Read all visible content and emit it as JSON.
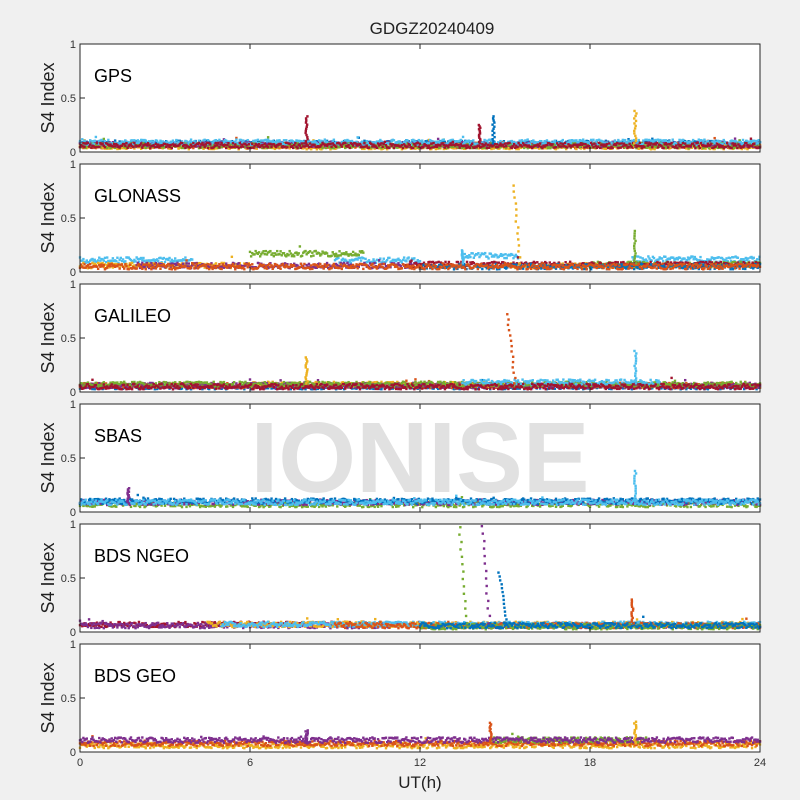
{
  "chart_data": {
    "type": "scatter",
    "title": "GDGZ20240409",
    "xlabel": "UT(h)",
    "ylabel": "S4 Index",
    "xlim": [
      0,
      24
    ],
    "ylim": [
      0,
      1
    ],
    "xticks": [
      "0",
      "6",
      "12",
      "18",
      "24"
    ],
    "yticks": [
      "0",
      "0.5",
      "1"
    ],
    "watermark": "IONISE",
    "colors": [
      "#0072BD",
      "#D95319",
      "#EDB120",
      "#7E2F8E",
      "#77AC30",
      "#4DBEEE",
      "#A2142F"
    ],
    "panels": [
      {
        "label": "GPS",
        "series": [
          {
            "color": 0,
            "segments": [
              [
                0,
                24,
                0.08
              ]
            ]
          },
          {
            "color": 1,
            "segments": [
              [
                0,
                24,
                0.06
              ]
            ]
          },
          {
            "color": 2,
            "segments": [
              [
                0,
                24,
                0.05
              ]
            ]
          },
          {
            "color": 3,
            "segments": [
              [
                0,
                24,
                0.07
              ]
            ]
          },
          {
            "color": 4,
            "segments": [
              [
                0,
                24,
                0.06
              ]
            ]
          },
          {
            "color": 5,
            "segments": [
              [
                0,
                24,
                0.09
              ]
            ]
          },
          {
            "color": 6,
            "segments": [
              [
                0,
                24,
                0.06
              ]
            ]
          }
        ],
        "spikes": [
          {
            "t": 8.0,
            "color": 6,
            "max": 0.33
          },
          {
            "t": 14.1,
            "color": 6,
            "max": 0.25
          },
          {
            "t": 14.6,
            "color": 0,
            "max": 0.33
          },
          {
            "t": 19.6,
            "color": 2,
            "max": 0.38
          }
        ]
      },
      {
        "label": "GLONASS",
        "series": [
          {
            "color": 5,
            "segments": [
              [
                0,
                4,
                0.11
              ],
              [
                9,
                12,
                0.11
              ],
              [
                13.5,
                15.5,
                0.15
              ],
              [
                19.5,
                24,
                0.12
              ]
            ]
          },
          {
            "color": 2,
            "segments": [
              [
                0,
                6,
                0.06
              ],
              [
                15,
                20,
                0.06
              ]
            ]
          },
          {
            "color": 3,
            "segments": [
              [
                2,
                12,
                0.06
              ]
            ]
          },
          {
            "color": 4,
            "segments": [
              [
                6,
                10,
                0.17
              ],
              [
                18,
                24,
                0.07
              ]
            ]
          },
          {
            "color": 6,
            "segments": [
              [
                11.5,
                24,
                0.07
              ]
            ]
          },
          {
            "color": 0,
            "segments": [
              [
                12,
                24,
                0.05
              ]
            ]
          },
          {
            "color": 1,
            "segments": [
              [
                0,
                24,
                0.05
              ]
            ]
          }
        ],
        "spikes": [
          {
            "t": 13.5,
            "color": 5,
            "max": 0.2
          },
          {
            "t": 15.3,
            "color": 2,
            "max": 0.8
          },
          {
            "t": 19.6,
            "color": 4,
            "max": 0.38
          }
        ]
      },
      {
        "label": "GALILEO",
        "series": [
          {
            "color": 0,
            "segments": [
              [
                0,
                24,
                0.05
              ]
            ]
          },
          {
            "color": 1,
            "segments": [
              [
                0,
                24,
                0.06
              ]
            ]
          },
          {
            "color": 2,
            "segments": [
              [
                6,
                15,
                0.07
              ]
            ]
          },
          {
            "color": 3,
            "segments": [
              [
                0,
                24,
                0.06
              ]
            ]
          },
          {
            "color": 4,
            "segments": [
              [
                0,
                24,
                0.07
              ]
            ]
          },
          {
            "color": 5,
            "segments": [
              [
                13.5,
                20.5,
                0.09
              ]
            ]
          },
          {
            "color": 6,
            "segments": [
              [
                0,
                24,
                0.05
              ]
            ]
          }
        ],
        "spikes": [
          {
            "t": 8.0,
            "color": 2,
            "max": 0.32
          },
          {
            "t": 15.1,
            "color": 1,
            "max": 0.72
          },
          {
            "t": 19.6,
            "color": 5,
            "max": 0.38
          }
        ]
      },
      {
        "label": "SBAS",
        "series": [
          {
            "color": 4,
            "segments": [
              [
                0,
                24,
                0.07
              ]
            ]
          },
          {
            "color": 3,
            "segments": [
              [
                0,
                24,
                0.09
              ]
            ]
          },
          {
            "color": 0,
            "segments": [
              [
                0,
                24,
                0.1
              ]
            ]
          },
          {
            "color": 5,
            "segments": [
              [
                0,
                24,
                0.09
              ]
            ]
          }
        ],
        "spikes": [
          {
            "t": 1.7,
            "color": 3,
            "max": 0.22
          },
          {
            "t": 19.6,
            "color": 5,
            "max": 0.38
          }
        ]
      },
      {
        "label": "BDS NGEO",
        "series": [
          {
            "color": 6,
            "segments": [
              [
                0,
                10,
                0.07
              ]
            ]
          },
          {
            "color": 3,
            "segments": [
              [
                0,
                24,
                0.06
              ]
            ]
          },
          {
            "color": 2,
            "segments": [
              [
                4.5,
                24,
                0.07
              ]
            ]
          },
          {
            "color": 5,
            "segments": [
              [
                5,
                24,
                0.07
              ]
            ]
          },
          {
            "color": 1,
            "segments": [
              [
                9,
                24,
                0.06
              ]
            ]
          },
          {
            "color": 4,
            "segments": [
              [
                12,
                24,
                0.05
              ]
            ]
          },
          {
            "color": 0,
            "segments": [
              [
                12,
                24,
                0.06
              ]
            ]
          }
        ],
        "spikes": [
          {
            "t": 13.4,
            "color": 4,
            "max": 0.97
          },
          {
            "t": 14.2,
            "color": 3,
            "max": 0.98
          },
          {
            "t": 14.8,
            "color": 0,
            "max": 0.55
          },
          {
            "t": 19.5,
            "color": 1,
            "max": 0.3
          }
        ]
      },
      {
        "label": "BDS GEO",
        "series": [
          {
            "color": 2,
            "segments": [
              [
                0,
                24,
                0.06
              ]
            ]
          },
          {
            "color": 1,
            "segments": [
              [
                0,
                24,
                0.08
              ]
            ]
          },
          {
            "color": 4,
            "segments": [
              [
                14.5,
                20,
                0.11
              ]
            ]
          },
          {
            "color": 3,
            "segments": [
              [
                0,
                24,
                0.11
              ]
            ]
          }
        ],
        "spikes": [
          {
            "t": 8.0,
            "color": 3,
            "max": 0.2
          },
          {
            "t": 14.5,
            "color": 1,
            "max": 0.27
          },
          {
            "t": 19.6,
            "color": 2,
            "max": 0.28
          }
        ]
      }
    ]
  }
}
